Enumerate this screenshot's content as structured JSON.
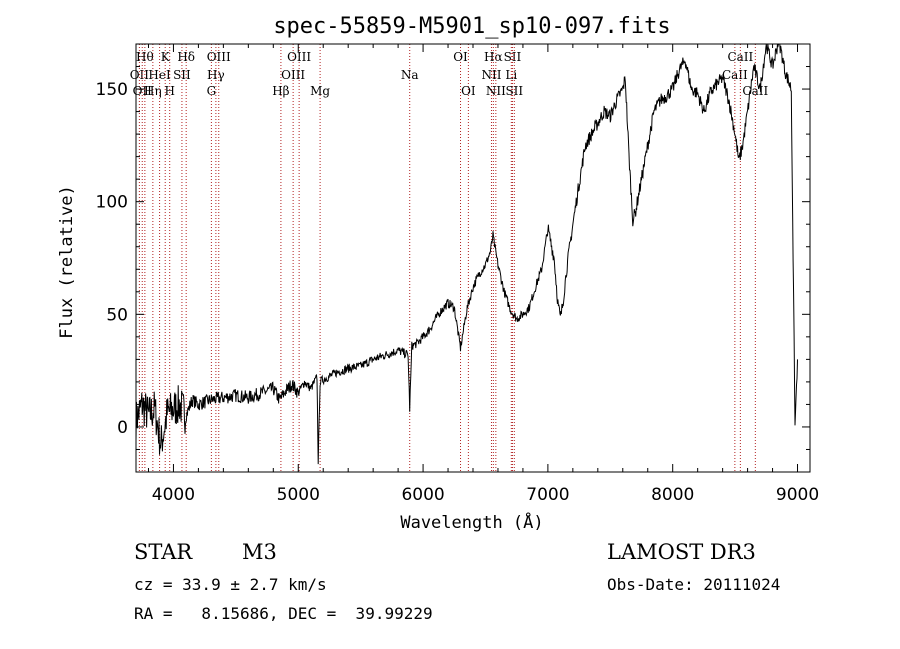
{
  "chart_data": {
    "type": "line",
    "title": "spec-55859-M5901_sp10-097.fits",
    "xlabel": "Wavelength (Å)",
    "ylabel": "Flux (relative)",
    "xlim": [
      3700,
      9100
    ],
    "ylim": [
      -20,
      170
    ],
    "xticks": [
      4000,
      5000,
      6000,
      7000,
      8000,
      9000
    ],
    "yticks": [
      0,
      50,
      100,
      150
    ],
    "series": [
      {
        "name": "flux",
        "x": [
          3700,
          3750,
          3800,
          3850,
          3900,
          3950,
          4000,
          4050,
          4100,
          4150,
          4200,
          4300,
          4400,
          4500,
          4600,
          4700,
          4800,
          4850,
          4900,
          4950,
          5000,
          5050,
          5100,
          5150,
          5160,
          5175,
          5200,
          5300,
          5400,
          5500,
          5600,
          5700,
          5800,
          5880,
          5893,
          5910,
          5950,
          6000,
          6050,
          6100,
          6150,
          6200,
          6250,
          6280,
          6300,
          6350,
          6400,
          6450,
          6500,
          6540,
          6560,
          6580,
          6600,
          6650,
          6700,
          6750,
          6800,
          6850,
          6900,
          6950,
          7000,
          7050,
          7080,
          7100,
          7120,
          7150,
          7200,
          7250,
          7300,
          7350,
          7400,
          7450,
          7500,
          7550,
          7600,
          7620,
          7650,
          7680,
          7700,
          7750,
          7800,
          7850,
          7900,
          7950,
          8000,
          8050,
          8100,
          8150,
          8200,
          8250,
          8300,
          8350,
          8400,
          8450,
          8500,
          8530,
          8560,
          8600,
          8650,
          8700,
          8750,
          8800,
          8850,
          8900,
          8950,
          8980,
          9000
        ],
        "y": [
          3,
          10,
          5,
          8,
          -8,
          6,
          8,
          10,
          5,
          12,
          10,
          12,
          13,
          14,
          13,
          15,
          17,
          12,
          16,
          19,
          15,
          20,
          17,
          22,
          -15,
          20,
          21,
          24,
          26,
          27,
          30,
          32,
          34,
          32,
          8,
          36,
          37,
          40,
          43,
          48,
          52,
          55,
          53,
          42,
          35,
          52,
          62,
          68,
          72,
          78,
          85,
          78,
          72,
          60,
          52,
          48,
          50,
          53,
          62,
          70,
          88,
          75,
          55,
          48,
          55,
          70,
          90,
          108,
          125,
          130,
          135,
          140,
          138,
          145,
          150,
          155,
          120,
          92,
          95,
          110,
          125,
          140,
          145,
          147,
          150,
          158,
          163,
          150,
          148,
          140,
          148,
          152,
          155,
          145,
          130,
          118,
          125,
          140,
          160,
          150,
          170,
          160,
          172,
          158,
          150,
          0,
          30
        ]
      }
    ],
    "lines": [
      {
        "wl": 3727,
        "label": "OII",
        "row": 2
      },
      {
        "wl": 3750,
        "label": "OII",
        "row": 3
      },
      {
        "wl": 3771,
        "label": "Hθ",
        "row": 1
      },
      {
        "wl": 3835,
        "label": "Hη",
        "row": 3
      },
      {
        "wl": 3889,
        "label": "HeI",
        "row": 2
      },
      {
        "wl": 3934,
        "label": "K",
        "row": 1
      },
      {
        "wl": 3970,
        "label": "H",
        "row": 3
      },
      {
        "wl": 4068,
        "label": "SII",
        "row": 2
      },
      {
        "wl": 4102,
        "label": "Hδ",
        "row": 1
      },
      {
        "wl": 4304,
        "label": "G",
        "row": 3
      },
      {
        "wl": 4340,
        "label": "Hγ",
        "row": 2
      },
      {
        "wl": 4363,
        "label": "OIII",
        "row": 1
      },
      {
        "wl": 4861,
        "label": "Hβ",
        "row": 3
      },
      {
        "wl": 4959,
        "label": "OIII",
        "row": 2
      },
      {
        "wl": 5007,
        "label": "OIII",
        "row": 1
      },
      {
        "wl": 5175,
        "label": "Mg",
        "row": 3
      },
      {
        "wl": 5893,
        "label": "Na",
        "row": 2
      },
      {
        "wl": 6300,
        "label": "OI",
        "row": 1
      },
      {
        "wl": 6363,
        "label": "OI",
        "row": 3
      },
      {
        "wl": 6548,
        "label": "NII",
        "row": 2
      },
      {
        "wl": 6563,
        "label": "Hα",
        "row": 1
      },
      {
        "wl": 6583,
        "label": "NII",
        "row": 3
      },
      {
        "wl": 6707,
        "label": "Li",
        "row": 2
      },
      {
        "wl": 6716,
        "label": "SII",
        "row": 1
      },
      {
        "wl": 6731,
        "label": "SII",
        "row": 3
      },
      {
        "wl": 8498,
        "label": "CaII",
        "row": 2
      },
      {
        "wl": 8542,
        "label": "CaII",
        "row": 1
      },
      {
        "wl": 8662,
        "label": "CaII",
        "row": 3
      }
    ]
  },
  "info": {
    "class": "STAR",
    "subclass": "M3",
    "survey": "LAMOST DR3",
    "cz": "cz = 33.9 ± 2.7 km/s",
    "obs_date": "Obs-Date: 20111024",
    "coords": "RA =   8.15686, DEC =  39.99229"
  }
}
